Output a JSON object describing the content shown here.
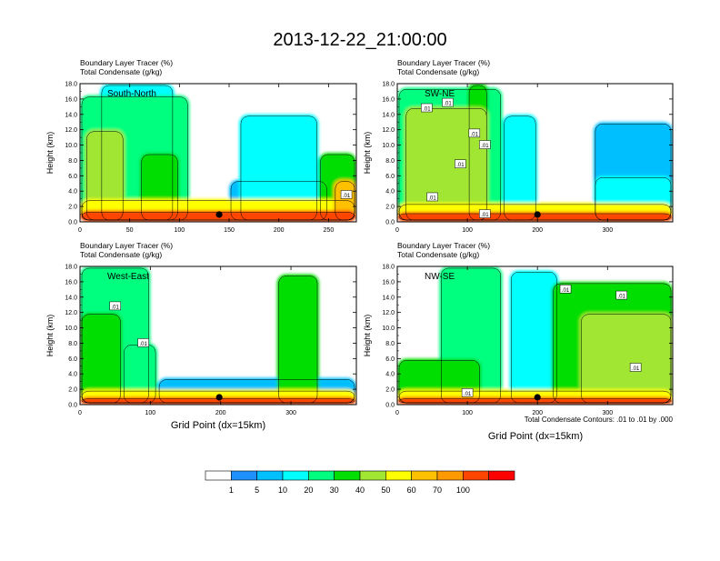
{
  "figure": {
    "title": "2013-12-22_21:00:00",
    "footnote": "Total Condensate Contours: .01 to .01 by .000",
    "xlabel": "Grid Point (dx=15km)"
  },
  "colorbar": {
    "labels": [
      "1",
      "5",
      "10",
      "20",
      "30",
      "40",
      "50",
      "60",
      "70",
      "100"
    ],
    "colors": [
      "#ffffff",
      "#1e90ff",
      "#00bfff",
      "#00ffff",
      "#00ff7f",
      "#00dd00",
      "#a0e632",
      "#ffff00",
      "#ffc000",
      "#ff9900",
      "#ff4500",
      "#ff0000"
    ]
  },
  "chart_data": [
    {
      "type": "heatmap",
      "panel": "South-North",
      "title_line1": "Boundary Layer Tracer   (%)",
      "title_line2": "Total Condensate   (g/kg)",
      "ylabel": "Height (km)",
      "xlabel": "",
      "xlim": [
        0,
        278
      ],
      "ylim": [
        0,
        18
      ],
      "xticks": [
        "0",
        "50",
        "100",
        "150",
        "200",
        "250"
      ],
      "yticks": [
        "0.0",
        "2.0",
        "4.0",
        "6.0",
        "8.0",
        "10.0",
        "12.0",
        "14.0",
        "16.0",
        "18.0"
      ],
      "marker_x": 140,
      "contour_labels": [
        {
          "x": 268,
          "y": 3.5,
          "text": ".01"
        }
      ],
      "regions": [
        {
          "x": [
            0,
            278
          ],
          "top": 1.5,
          "level": 10
        },
        {
          "x": [
            0,
            278
          ],
          "top": 3.0,
          "level": 7
        },
        {
          "x": [
            0,
            110
          ],
          "top": 16.5,
          "level": 4
        },
        {
          "x": [
            20,
            95
          ],
          "top": 18.0,
          "level": 3
        },
        {
          "x": [
            5,
            45
          ],
          "top": 12.0,
          "level": 6
        },
        {
          "x": [
            60,
            100
          ],
          "top": 9.0,
          "level": 5
        },
        {
          "x": [
            150,
            250
          ],
          "top": 5.5,
          "level": 2
        },
        {
          "x": [
            160,
            240
          ],
          "top": 14.0,
          "level": 3
        },
        {
          "x": [
            240,
            278
          ],
          "top": 9.0,
          "level": 5
        },
        {
          "x": [
            255,
            278
          ],
          "top": 5.5,
          "level": 8
        }
      ]
    },
    {
      "type": "heatmap",
      "panel": "SW-NE",
      "title_line1": "Boundary Layer Tracer   (%)",
      "title_line2": "Total Condensate   (g/kg)",
      "ylabel": "Height (km)",
      "xlabel": "",
      "xlim": [
        0,
        393
      ],
      "ylim": [
        0,
        18
      ],
      "xticks": [
        "0",
        "100",
        "200",
        "300"
      ],
      "yticks": [
        "0.0",
        "2.0",
        "4.0",
        "6.0",
        "8.0",
        "10.0",
        "12.0",
        "14.0",
        "16.0",
        "18.0"
      ],
      "marker_x": 200,
      "contour_labels": [
        {
          "x": 42,
          "y": 14.8,
          "text": ".01"
        },
        {
          "x": 72,
          "y": 15.5,
          "text": ".01"
        },
        {
          "x": 110,
          "y": 11.5,
          "text": ".01"
        },
        {
          "x": 125,
          "y": 10.0,
          "text": ".01"
        },
        {
          "x": 90,
          "y": 7.5,
          "text": ".01"
        },
        {
          "x": 50,
          "y": 3.2,
          "text": ".01"
        },
        {
          "x": 125,
          "y": 1.0,
          "text": ".01"
        }
      ],
      "regions": [
        {
          "x": [
            0,
            393
          ],
          "top": 1.3,
          "level": 10
        },
        {
          "x": [
            0,
            393
          ],
          "top": 2.5,
          "level": 7
        },
        {
          "x": [
            0,
            150
          ],
          "top": 17.5,
          "level": 4
        },
        {
          "x": [
            10,
            130
          ],
          "top": 15.0,
          "level": 6
        },
        {
          "x": [
            100,
            130
          ],
          "top": 18.0,
          "level": 5
        },
        {
          "x": [
            150,
            200
          ],
          "top": 14.0,
          "level": 3
        },
        {
          "x": [
            280,
            393
          ],
          "top": 6.0,
          "level": 3
        },
        {
          "x": [
            280,
            393
          ],
          "top": 13.0,
          "level": 2
        }
      ]
    },
    {
      "type": "heatmap",
      "panel": "West-East",
      "title_line1": "Boundary Layer Tracer   (%)",
      "title_line2": "Total Condensate   (g/kg)",
      "ylabel": "Height (km)",
      "xlabel": "",
      "xlim": [
        0,
        393
      ],
      "ylim": [
        0,
        18
      ],
      "xticks": [
        "0",
        "100",
        "200",
        "300"
      ],
      "yticks": [
        "0.0",
        "2.0",
        "4.0",
        "6.0",
        "8.0",
        "10.0",
        "12.0",
        "14.0",
        "16.0",
        "18.0"
      ],
      "marker_x": 198,
      "contour_labels": [
        {
          "x": 50,
          "y": 12.8,
          "text": ".01"
        },
        {
          "x": 90,
          "y": 8.0,
          "text": ".01"
        }
      ],
      "regions": [
        {
          "x": [
            0,
            393
          ],
          "top": 1.0,
          "level": 10
        },
        {
          "x": [
            0,
            393
          ],
          "top": 2.0,
          "level": 7
        },
        {
          "x": [
            0,
            100
          ],
          "top": 18.0,
          "level": 4
        },
        {
          "x": [
            0,
            60
          ],
          "top": 12.0,
          "level": 5
        },
        {
          "x": [
            60,
            110
          ],
          "top": 8.0,
          "level": 4
        },
        {
          "x": [
            110,
            393
          ],
          "top": 3.5,
          "level": 2
        },
        {
          "x": [
            280,
            340
          ],
          "top": 17.0,
          "level": 5
        }
      ]
    },
    {
      "type": "heatmap",
      "panel": "NW-SE",
      "title_line1": "Boundary Layer Tracer   (%)",
      "title_line2": "Total Condensate   (g/kg)",
      "ylabel": "Height (km)",
      "xlabel": "Grid Point (dx=15km)",
      "xlim": [
        0,
        393
      ],
      "ylim": [
        0,
        18
      ],
      "xticks": [
        "0",
        "100",
        "200",
        "300"
      ],
      "yticks": [
        "0.0",
        "2.0",
        "4.0",
        "6.0",
        "8.0",
        "10.0",
        "12.0",
        "14.0",
        "16.0",
        "18.0"
      ],
      "marker_x": 200,
      "contour_labels": [
        {
          "x": 240,
          "y": 15.0,
          "text": ".01"
        },
        {
          "x": 320,
          "y": 14.2,
          "text": ".01"
        },
        {
          "x": 340,
          "y": 4.8,
          "text": ".01"
        },
        {
          "x": 100,
          "y": 1.5,
          "text": ".01"
        }
      ],
      "regions": [
        {
          "x": [
            0,
            393
          ],
          "top": 1.0,
          "level": 10
        },
        {
          "x": [
            0,
            393
          ],
          "top": 2.0,
          "level": 7
        },
        {
          "x": [
            0,
            120
          ],
          "top": 6.0,
          "level": 5
        },
        {
          "x": [
            60,
            150
          ],
          "top": 18.0,
          "level": 4
        },
        {
          "x": [
            160,
            230
          ],
          "top": 17.5,
          "level": 3
        },
        {
          "x": [
            220,
            393
          ],
          "top": 16.0,
          "level": 5
        },
        {
          "x": [
            260,
            393
          ],
          "top": 12.0,
          "level": 6
        }
      ]
    }
  ]
}
